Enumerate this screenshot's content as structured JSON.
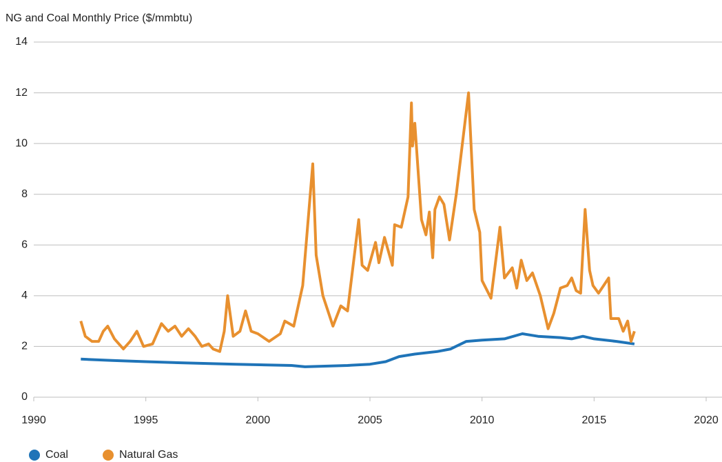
{
  "chart_data": {
    "type": "line",
    "title": "NG and Coal Monthly Price ($/mmbtu)",
    "xlim": [
      1990,
      2020
    ],
    "xticks": [
      1990,
      1995,
      2000,
      2005,
      2010,
      2015,
      2020
    ],
    "ylim": [
      0,
      14
    ],
    "yticks": [
      0,
      2,
      4,
      6,
      8,
      10,
      12,
      14
    ],
    "grid": true,
    "legend": "bottom-left",
    "series": [
      {
        "name": "Coal",
        "color": "#1f74b8",
        "x": [
          1992.1,
          1993.5,
          1995,
          1996.7,
          1999,
          2001.5,
          2002.1,
          2004,
          2005,
          2005.7,
          2006.3,
          2007,
          2008,
          2008.6,
          2009.3,
          2010,
          2011,
          2011.8,
          2012.5,
          2013.5,
          2014,
          2014.5,
          2015,
          2016,
          2016.8
        ],
        "values": [
          1.5,
          1.45,
          1.4,
          1.35,
          1.3,
          1.25,
          1.2,
          1.25,
          1.3,
          1.4,
          1.6,
          1.7,
          1.8,
          1.9,
          2.2,
          2.25,
          2.3,
          2.5,
          2.4,
          2.35,
          2.3,
          2.4,
          2.3,
          2.2,
          2.1
        ]
      },
      {
        "name": "Natural Gas",
        "color": "#e8902f",
        "x": [
          1992.1,
          1992.3,
          1992.6,
          1992.9,
          1993.1,
          1993.3,
          1993.6,
          1994.0,
          1994.3,
          1994.6,
          1994.9,
          1995.3,
          1995.7,
          1996.0,
          1996.3,
          1996.6,
          1996.9,
          1997.2,
          1997.5,
          1997.8,
          1998.0,
          1998.3,
          1998.5,
          1998.65,
          1998.9,
          1999.2,
          1999.45,
          1999.7,
          2000.0,
          2000.5,
          2001.0,
          2001.2,
          2001.6,
          2002.0,
          2002.45,
          2002.6,
          2002.9,
          2003.35,
          2003.7,
          2004.0,
          2004.5,
          2004.65,
          2004.9,
          2005.25,
          2005.4,
          2005.65,
          2006.0,
          2006.1,
          2006.4,
          2006.7,
          2006.85,
          2006.9,
          2007.0,
          2007.3,
          2007.5,
          2007.65,
          2007.8,
          2007.9,
          2008.1,
          2008.3,
          2008.55,
          2008.85,
          2009.4,
          2009.65,
          2009.9,
          2010.0,
          2010.4,
          2010.8,
          2011.0,
          2011.35,
          2011.55,
          2011.75,
          2012.0,
          2012.25,
          2012.6,
          2012.95,
          2013.2,
          2013.5,
          2013.8,
          2014.0,
          2014.2,
          2014.4,
          2014.6,
          2014.8,
          2014.95,
          2015.2,
          2015.5,
          2015.65,
          2015.75,
          2016.1,
          2016.3,
          2016.5,
          2016.65,
          2016.8
        ],
        "values": [
          3.0,
          2.4,
          2.2,
          2.2,
          2.6,
          2.8,
          2.3,
          1.9,
          2.2,
          2.6,
          2.0,
          2.1,
          2.9,
          2.6,
          2.8,
          2.4,
          2.7,
          2.4,
          2.0,
          2.1,
          1.9,
          1.8,
          2.6,
          4.0,
          2.4,
          2.6,
          3.4,
          2.6,
          2.5,
          2.2,
          2.5,
          3.0,
          2.8,
          4.4,
          9.2,
          5.6,
          4.0,
          2.8,
          3.6,
          3.4,
          7.0,
          5.2,
          5.0,
          6.1,
          5.3,
          6.3,
          5.2,
          6.8,
          6.7,
          7.9,
          11.6,
          9.9,
          10.8,
          7.0,
          6.4,
          7.3,
          5.5,
          7.4,
          7.9,
          7.6,
          6.2,
          8.0,
          12.0,
          7.4,
          6.5,
          4.6,
          3.9,
          6.7,
          4.7,
          5.1,
          4.3,
          5.4,
          4.6,
          4.9,
          4.0,
          2.7,
          3.3,
          4.3,
          4.4,
          4.7,
          4.2,
          4.1,
          7.4,
          5.0,
          4.4,
          4.1,
          4.5,
          4.7,
          3.1,
          3.1,
          2.6,
          3.0,
          2.2,
          2.6
        ]
      }
    ]
  }
}
